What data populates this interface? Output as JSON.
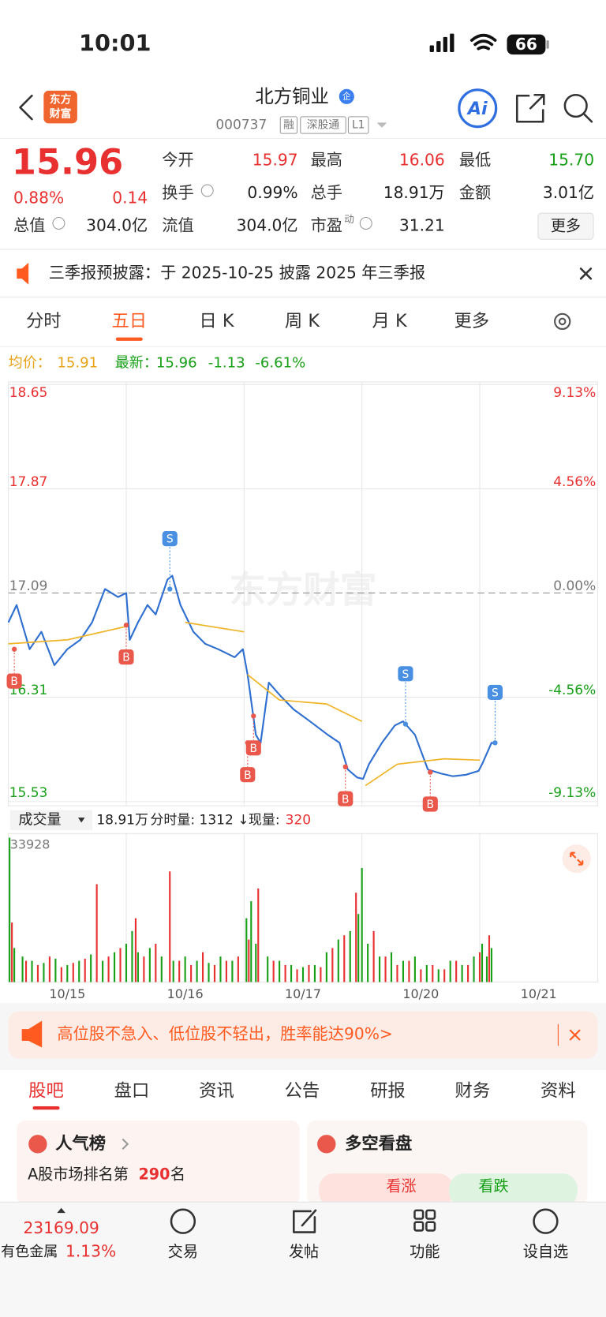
{
  "status_bar": {
    "time": "10:01",
    "battery": "66"
  },
  "header": {
    "logo_line1": "东方",
    "logo_line2": "财富",
    "title": "北方铜业",
    "badge": "企",
    "code": "000737",
    "tags": [
      "融",
      "深股通",
      "L1"
    ],
    "ai": "Ai"
  },
  "quote": {
    "price": "15.96",
    "change_pct": "0.88%",
    "change": "0.14",
    "open_label": "今开",
    "open": "15.97",
    "high_label": "最高",
    "high": "16.06",
    "low_label": "最低",
    "low": "15.70",
    "turnover_label": "换手",
    "turnover": "0.99%",
    "volume_label": "总手",
    "volume": "18.91万",
    "amount_label": "金额",
    "amount": "3.01亿",
    "mcap_label": "总值",
    "mcap": "304.0亿",
    "float_label": "流值",
    "float": "304.0亿",
    "pe_label": "市盈",
    "pe_sup": "动",
    "pe": "31.21",
    "more": "更多"
  },
  "notice": {
    "text": "三季报预披露：于 2025-10-25 披露 2025 年三季报"
  },
  "chart_tabs": {
    "items": [
      "分时",
      "五日",
      "日 K",
      "周 K",
      "月 K",
      "更多"
    ],
    "active": 1
  },
  "chart_info": {
    "avg_label": "均价：",
    "avg": "15.91",
    "last_label": "最新：",
    "last": "15.96",
    "change": "-1.13",
    "change_pct": "-6.61%"
  },
  "chart_data": {
    "type": "line",
    "watermark": "东方财富",
    "xlim": [
      0,
      5
    ],
    "xticks": [
      1,
      2,
      3,
      4
    ],
    "dates": [
      "10/15",
      "10/16",
      "10/17",
      "10/20",
      "10/21"
    ],
    "ylim": [
      15.53,
      18.65
    ],
    "yticks": [
      15.53,
      16.31,
      17.09,
      17.87,
      18.65
    ],
    "y2lim": [
      -9.13,
      9.13
    ],
    "y2ticks": [
      {
        "value": -9.13,
        "label": "-9.13%"
      },
      {
        "value": -4.56,
        "label": "-4.56%"
      },
      {
        "value": 0,
        "label": "0.00%"
      },
      {
        "value": 4.56,
        "label": "4.56%"
      },
      {
        "value": 9.13,
        "label": "9.13%"
      }
    ],
    "series": [
      {
        "color": "#2f6fd0",
        "x": [
          0,
          0.07,
          0.18,
          0.28,
          0.39,
          0.5,
          0.61,
          0.71,
          0.82,
          0.93,
          1.0,
          1.03,
          1.1,
          1.18,
          1.25,
          1.35,
          1.39,
          1.46,
          1.57,
          1.67,
          1.78,
          1.92,
          1.99,
          2.03,
          2.1,
          2.14,
          2.21,
          2.31,
          2.42,
          2.56,
          2.71,
          2.81,
          2.88,
          2.96,
          3.01,
          3.06,
          3.17,
          3.28,
          3.35,
          3.45,
          3.56,
          3.67,
          3.77,
          3.88,
          3.99,
          4.02,
          4.1,
          4.13
        ],
        "values": [
          16.87,
          17.0,
          16.67,
          16.8,
          16.55,
          16.67,
          16.74,
          16.87,
          17.12,
          17.06,
          17.09,
          16.74,
          16.87,
          17.0,
          16.93,
          17.19,
          17.22,
          17.0,
          16.8,
          16.71,
          16.67,
          16.61,
          16.67,
          16.48,
          16.03,
          15.97,
          16.42,
          16.32,
          16.22,
          16.13,
          16.03,
          15.97,
          15.77,
          15.71,
          15.7,
          15.81,
          15.97,
          16.1,
          16.13,
          16.03,
          15.77,
          15.74,
          15.72,
          15.73,
          15.76,
          15.81,
          15.97,
          15.96
        ]
      },
      {
        "color": "#f0b429",
        "x": [
          0,
          0.5,
          1.0,
          1.0,
          1.5,
          2.0,
          2.0,
          2.03,
          2.3,
          2.7,
          3.0,
          3.0,
          3.03,
          3.3,
          3.7,
          4.0,
          4.0,
          4.13
        ],
        "values": [
          16.71,
          16.74,
          16.84,
          null,
          16.87,
          16.8,
          null,
          16.48,
          16.29,
          16.26,
          16.13,
          null,
          15.65,
          15.81,
          15.85,
          15.84,
          null,
          15.87
        ]
      }
    ],
    "markers": [
      {
        "label": "B",
        "x": 0.05,
        "price": 16.67
      },
      {
        "label": "B",
        "x": 1.0,
        "price": 16.85
      },
      {
        "label": "S",
        "x": 1.37,
        "price": 17.12
      },
      {
        "label": "B",
        "x": 2.03,
        "price": 15.97
      },
      {
        "label": "B",
        "x": 2.08,
        "price": 16.17
      },
      {
        "label": "B",
        "x": 2.86,
        "price": 15.79
      },
      {
        "label": "S",
        "x": 3.37,
        "price": 16.11
      },
      {
        "label": "B",
        "x": 3.58,
        "price": 15.75
      },
      {
        "label": "S",
        "x": 4.13,
        "price": 15.97
      }
    ],
    "volume": {
      "label": "成交量",
      "total": "18.91万",
      "tick_info": "分时量: 1312 ↓",
      "current_label": "现量:",
      "current": "320",
      "ylim": [
        0,
        33928
      ],
      "yticks": [
        33928
      ],
      "series": [
        {
          "color": "#18a018",
          "x": [
            0.01,
            0.05,
            0.12,
            0.2,
            0.3,
            0.4,
            0.5,
            0.6,
            0.7,
            0.8,
            0.9,
            1.0,
            1.05,
            1.1,
            1.2,
            1.3,
            1.4,
            1.5,
            1.6,
            1.7,
            1.8,
            1.9,
            2.02,
            2.06,
            2.1,
            2.2,
            2.3,
            2.4,
            2.5,
            2.6,
            2.7,
            2.8,
            2.9,
            2.97,
            3.0,
            3.05,
            3.15,
            3.25,
            3.35,
            3.45,
            3.55,
            3.65,
            3.75,
            3.85,
            3.95,
            4.02,
            4.06,
            4.1
          ],
          "values": [
            33928,
            8000,
            6000,
            5000,
            4500,
            5500,
            4000,
            5000,
            6500,
            5000,
            7000,
            9000,
            12000,
            7000,
            8000,
            6000,
            5000,
            6000,
            5000,
            4500,
            6000,
            5000,
            15000,
            19000,
            9000,
            6000,
            5000,
            4000,
            3500,
            4000,
            7000,
            10000,
            12000,
            16000,
            26800,
            9000,
            6000,
            7000,
            5000,
            6000,
            4000,
            3000,
            5000,
            4000,
            6000,
            9000,
            6000,
            8000
          ]
        },
        {
          "color": "#e93030",
          "x": [
            0.03,
            0.15,
            0.25,
            0.35,
            0.45,
            0.55,
            0.65,
            0.75,
            0.85,
            0.95,
            1.08,
            1.15,
            1.25,
            1.37,
            1.45,
            1.55,
            1.65,
            1.75,
            1.85,
            1.95,
            2.04,
            2.12,
            2.25,
            2.35,
            2.45,
            2.55,
            2.65,
            2.75,
            2.85,
            2.95,
            3.1,
            3.2,
            3.3,
            3.4,
            3.5,
            3.6,
            3.7,
            3.8,
            3.9,
            4.0,
            4.08
          ],
          "values": [
            14000,
            5000,
            4000,
            6000,
            3500,
            4500,
            5500,
            23000,
            6000,
            8000,
            15000,
            6000,
            9000,
            26000,
            5000,
            4000,
            7000,
            4000,
            5000,
            6000,
            10000,
            22000,
            5000,
            4000,
            3000,
            4000,
            3500,
            8000,
            11000,
            21000,
            12000,
            6000,
            4000,
            5000,
            3000,
            4000,
            3000,
            5000,
            4000,
            7000,
            11000
          ]
        }
      ]
    }
  },
  "banner": {
    "text": "高位股不急入、低位股不轻出，胜率能达90%>"
  },
  "section_tabs": {
    "items": [
      "股吧",
      "盘口",
      "资讯",
      "公告",
      "研报",
      "财务",
      "资料"
    ],
    "active": 0
  },
  "popularity": {
    "title": "人气榜",
    "rank_prefix": "A股市场排名第",
    "rank": "290",
    "rank_suffix": "名"
  },
  "sentiment": {
    "title": "多空看盘",
    "bull": "看涨",
    "bear": "看跌"
  },
  "bottom_bar": {
    "index_value": "23169.09",
    "sector": "有色金属",
    "sector_change": "1.13%",
    "items": [
      "交易",
      "发帖",
      "功能",
      "设自选"
    ]
  }
}
